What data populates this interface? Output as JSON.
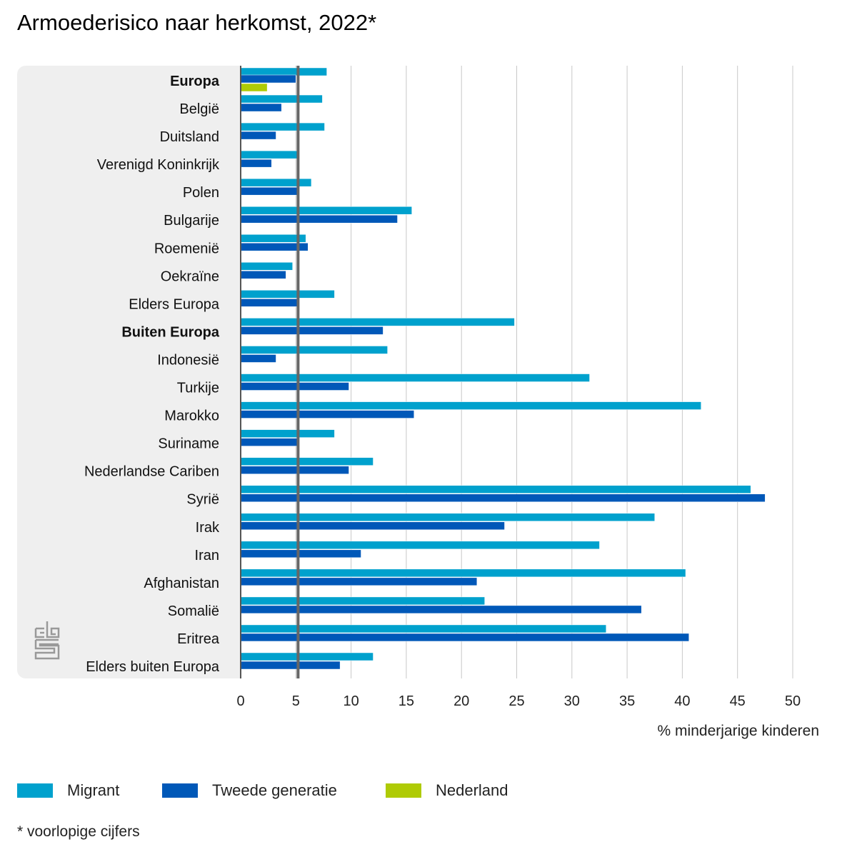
{
  "chart_data": {
    "type": "bar",
    "orientation": "horizontal",
    "title": "Armoederisico naar herkomst, 2022*",
    "xlabel": "% minderjarige kinderen",
    "xlim": [
      0,
      50
    ],
    "xticks": [
      0,
      5,
      10,
      15,
      20,
      25,
      30,
      35,
      40,
      45,
      50
    ],
    "grid": true,
    "reference_line": 5.2,
    "legend_placement": "bottom",
    "categories": [
      "Europa",
      "België",
      "Duitsland",
      "Verenigd Koninkrijk",
      "Polen",
      "Bulgarije",
      "Roemenië",
      "Oekraïne",
      "Elders Europa",
      "Buiten Europa",
      "Indonesië",
      "Turkije",
      "Marokko",
      "Suriname",
      "Nederlandse Cariben",
      "Syrië",
      "Irak",
      "Iran",
      "Afghanistan",
      "Somalië",
      "Eritrea",
      "Elders buiten Europa"
    ],
    "bold_categories": [
      "Europa",
      "Buiten Europa"
    ],
    "series": [
      {
        "name": "Migrant",
        "color": "#00a1cd",
        "values": [
          7.8,
          7.4,
          7.6,
          5.1,
          6.4,
          15.5,
          5.9,
          4.7,
          8.5,
          24.8,
          13.3,
          31.6,
          41.7,
          8.5,
          12.0,
          46.2,
          37.5,
          32.5,
          40.3,
          22.1,
          33.1,
          12.0
        ]
      },
      {
        "name": "Tweede generatie",
        "color": "#0058b8",
        "values": [
          5.0,
          3.7,
          3.2,
          2.8,
          5.2,
          14.2,
          6.1,
          4.1,
          5.2,
          12.9,
          3.2,
          9.8,
          15.7,
          5.2,
          9.8,
          47.5,
          23.9,
          10.9,
          21.4,
          36.3,
          40.6,
          9.0
        ]
      },
      {
        "name": "Nederland",
        "color": "#afcb05",
        "values": [
          2.4,
          null,
          null,
          null,
          null,
          null,
          null,
          null,
          null,
          null,
          null,
          null,
          null,
          null,
          null,
          null,
          null,
          null,
          null,
          null,
          null,
          null
        ]
      }
    ]
  },
  "footnote": "* voorlopige cijfers"
}
